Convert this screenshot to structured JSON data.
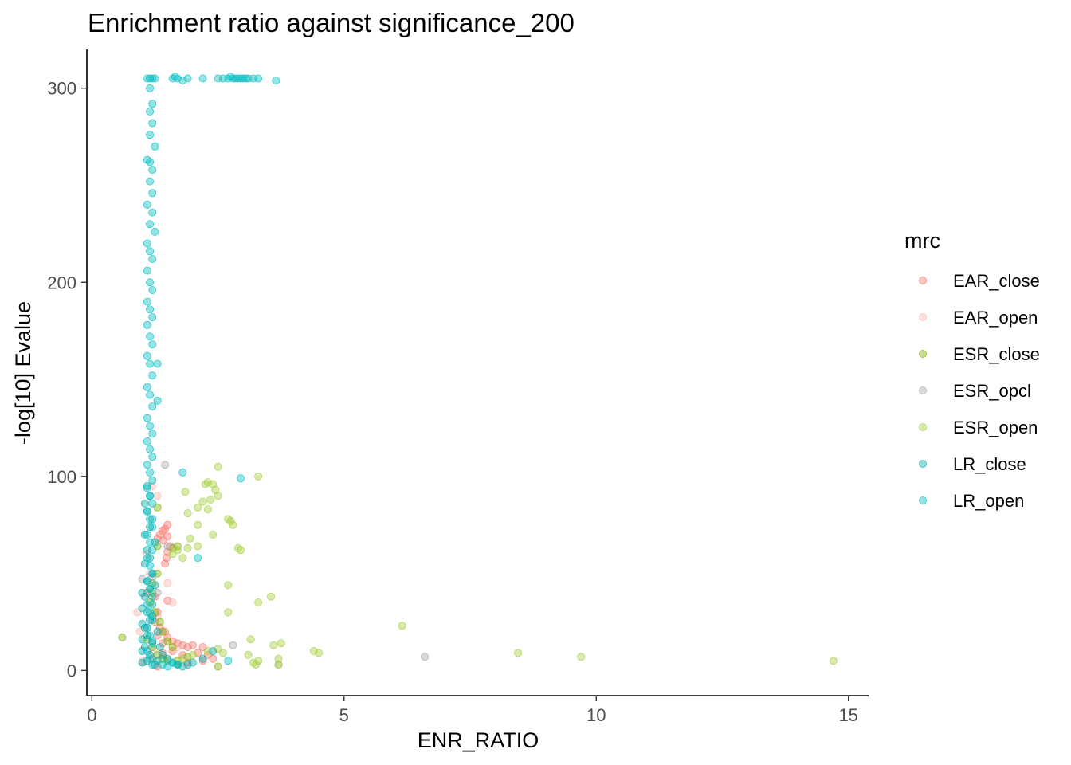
{
  "chart_data": {
    "type": "scatter",
    "title": "Enrichment ratio against significance_200",
    "xlabel": "ENR_RATIO",
    "ylabel": "-log[10] Evalue",
    "xlim": [
      -0.1,
      15.4
    ],
    "ylim": [
      -13,
      320
    ],
    "xticks": [
      0,
      5,
      10,
      15
    ],
    "yticks": [
      0,
      100,
      200,
      300
    ],
    "grid": false,
    "legend": {
      "title": "mrc",
      "position": "right"
    },
    "series": [
      {
        "name": "EAR_close",
        "color": "#F8766D",
        "points": [
          [
            1.5,
            75
          ],
          [
            1.45,
            73
          ],
          [
            1.4,
            72
          ],
          [
            1.35,
            70
          ],
          [
            1.5,
            69
          ],
          [
            1.3,
            68
          ],
          [
            1.42,
            67
          ],
          [
            1.55,
            64
          ],
          [
            1.5,
            61
          ],
          [
            1.48,
            58
          ],
          [
            1.45,
            55
          ],
          [
            1.3,
            30
          ],
          [
            1.25,
            25
          ],
          [
            1.35,
            22
          ],
          [
            1.45,
            20
          ],
          [
            1.5,
            17
          ],
          [
            1.6,
            15
          ],
          [
            1.7,
            14
          ],
          [
            1.8,
            13
          ],
          [
            1.9,
            12
          ],
          [
            2.0,
            13
          ],
          [
            2.2,
            12
          ],
          [
            2.3,
            8
          ],
          [
            2.4,
            6
          ],
          [
            2.2,
            5
          ],
          [
            1.9,
            4
          ],
          [
            1.7,
            3
          ],
          [
            1.3,
            2
          ],
          [
            1.2,
            6
          ],
          [
            1.4,
            9
          ],
          [
            1.6,
            10
          ],
          [
            1.8,
            8
          ],
          [
            2.1,
            9
          ],
          [
            1.1,
            40
          ],
          [
            1.25,
            38
          ],
          [
            1.5,
            36
          ],
          [
            1.3,
            18
          ],
          [
            1.4,
            14
          ]
        ]
      },
      {
        "name": "EAR_open",
        "color": "#FBB4AE",
        "points": [
          [
            0.9,
            30
          ],
          [
            0.95,
            20
          ],
          [
            1.2,
            95
          ],
          [
            1.3,
            90
          ],
          [
            1.1,
            60
          ],
          [
            1.15,
            50
          ],
          [
            1.5,
            45
          ],
          [
            1.6,
            35
          ],
          [
            1.3,
            28
          ],
          [
            1.4,
            20
          ],
          [
            1.7,
            12
          ],
          [
            1.8,
            8
          ],
          [
            1.2,
            10
          ],
          [
            1.0,
            5
          ]
        ]
      },
      {
        "name": "ESR_close",
        "color": "#7CAE00",
        "points": [
          [
            0.6,
            17
          ],
          [
            1.3,
            84
          ],
          [
            1.3,
            64
          ],
          [
            1.6,
            63
          ],
          [
            1.7,
            64
          ],
          [
            1.2,
            40
          ],
          [
            1.25,
            30
          ],
          [
            1.35,
            25
          ],
          [
            1.4,
            20
          ],
          [
            1.5,
            15
          ],
          [
            1.6,
            12
          ],
          [
            2.5,
            2
          ],
          [
            3.7,
            3
          ],
          [
            1.1,
            16
          ],
          [
            1.2,
            12
          ],
          [
            1.3,
            8
          ],
          [
            1.4,
            6
          ],
          [
            1.5,
            5
          ],
          [
            1.7,
            5
          ],
          [
            1.9,
            7
          ],
          [
            1.2,
            45
          ],
          [
            1.3,
            50
          ],
          [
            1.15,
            35
          ]
        ]
      },
      {
        "name": "ESR_opcl",
        "color": "#A6A6A6",
        "points": [
          [
            6.6,
            7
          ],
          [
            2.8,
            13
          ],
          [
            1.45,
            106
          ],
          [
            1.5,
            64
          ],
          [
            1.2,
            48
          ],
          [
            1.3,
            40
          ],
          [
            1.1,
            22
          ],
          [
            1.0,
            47
          ]
        ]
      },
      {
        "name": "ESR_open",
        "color": "#A3CF3C",
        "points": [
          [
            14.7,
            5
          ],
          [
            9.7,
            7
          ],
          [
            8.45,
            9
          ],
          [
            6.15,
            23
          ],
          [
            4.5,
            9
          ],
          [
            4.4,
            10
          ],
          [
            3.75,
            14
          ],
          [
            3.6,
            13
          ],
          [
            3.7,
            6
          ],
          [
            3.3,
            5
          ],
          [
            3.25,
            3
          ],
          [
            3.2,
            4
          ],
          [
            3.1,
            8
          ],
          [
            3.15,
            16
          ],
          [
            3.55,
            38
          ],
          [
            3.3,
            35
          ],
          [
            2.7,
            44
          ],
          [
            2.7,
            30
          ],
          [
            2.5,
            105
          ],
          [
            3.3,
            100
          ],
          [
            2.3,
            97
          ],
          [
            2.25,
            96
          ],
          [
            2.4,
            96
          ],
          [
            2.45,
            93
          ],
          [
            2.5,
            90
          ],
          [
            2.35,
            88
          ],
          [
            2.2,
            87
          ],
          [
            2.1,
            84
          ],
          [
            1.9,
            81
          ],
          [
            2.1,
            75
          ],
          [
            2.3,
            83
          ],
          [
            2.4,
            70
          ],
          [
            2.7,
            78
          ],
          [
            2.8,
            75
          ],
          [
            2.75,
            77
          ],
          [
            2.9,
            63
          ],
          [
            2.95,
            62
          ],
          [
            1.85,
            92
          ],
          [
            1.95,
            68
          ],
          [
            1.9,
            63
          ],
          [
            2.1,
            64
          ],
          [
            1.6,
            60
          ],
          [
            1.7,
            62
          ],
          [
            1.8,
            58
          ],
          [
            2.5,
            11
          ],
          [
            2.6,
            9
          ],
          [
            2.3,
            10
          ],
          [
            2.0,
            8
          ],
          [
            1.8,
            6
          ]
        ]
      },
      {
        "name": "LR_close",
        "color": "#00A9A9",
        "points": [
          [
            1.1,
            5
          ],
          [
            1.15,
            8
          ],
          [
            1.05,
            12
          ],
          [
            1.2,
            15
          ],
          [
            1.1,
            18
          ],
          [
            1.05,
            22
          ],
          [
            1.15,
            26
          ],
          [
            1.1,
            30
          ],
          [
            1.2,
            34
          ],
          [
            1.05,
            38
          ],
          [
            1.15,
            42
          ],
          [
            1.1,
            46
          ],
          [
            1.2,
            50
          ],
          [
            1.05,
            55
          ],
          [
            1.15,
            58
          ],
          [
            1.1,
            62
          ],
          [
            1.25,
            66
          ],
          [
            1.05,
            70
          ],
          [
            1.15,
            74
          ],
          [
            1.2,
            78
          ],
          [
            1.1,
            82
          ],
          [
            1.05,
            86
          ],
          [
            1.15,
            90
          ],
          [
            1.1,
            95
          ],
          [
            1.3,
            20
          ],
          [
            1.35,
            12
          ],
          [
            1.4,
            8
          ],
          [
            1.5,
            6
          ],
          [
            1.6,
            4
          ],
          [
            1.7,
            3
          ],
          [
            1.8,
            2
          ],
          [
            1.9,
            3
          ],
          [
            2.0,
            4
          ],
          [
            2.2,
            6
          ],
          [
            2.4,
            10
          ],
          [
            1.25,
            3
          ],
          [
            1.3,
            5
          ],
          [
            1.0,
            4
          ],
          [
            1.0,
            10
          ],
          [
            1.0,
            16
          ],
          [
            1.0,
            24
          ],
          [
            1.0,
            32
          ],
          [
            1.0,
            40
          ],
          [
            1.2,
            28
          ],
          [
            1.25,
            44
          ]
        ]
      },
      {
        "name": "LR_open",
        "color": "#00BFC4",
        "points": [
          [
            1.1,
            305
          ],
          [
            1.15,
            305
          ],
          [
            1.2,
            305
          ],
          [
            1.25,
            305
          ],
          [
            1.6,
            305
          ],
          [
            1.65,
            306
          ],
          [
            1.7,
            305
          ],
          [
            1.8,
            304
          ],
          [
            1.9,
            305
          ],
          [
            2.2,
            305
          ],
          [
            2.5,
            305
          ],
          [
            2.6,
            305
          ],
          [
            2.7,
            305
          ],
          [
            2.75,
            306
          ],
          [
            2.8,
            305
          ],
          [
            2.85,
            305
          ],
          [
            2.9,
            305
          ],
          [
            2.95,
            305
          ],
          [
            3.0,
            305
          ],
          [
            3.05,
            305
          ],
          [
            3.1,
            305
          ],
          [
            3.2,
            305
          ],
          [
            3.3,
            305
          ],
          [
            3.65,
            304
          ],
          [
            1.15,
            300
          ],
          [
            1.2,
            292
          ],
          [
            1.15,
            288
          ],
          [
            1.2,
            282
          ],
          [
            1.15,
            276
          ],
          [
            1.25,
            270
          ],
          [
            1.1,
            263
          ],
          [
            1.15,
            262
          ],
          [
            1.2,
            258
          ],
          [
            1.15,
            252
          ],
          [
            1.2,
            246
          ],
          [
            1.1,
            240
          ],
          [
            1.2,
            236
          ],
          [
            1.15,
            230
          ],
          [
            1.25,
            226
          ],
          [
            1.1,
            220
          ],
          [
            1.15,
            216
          ],
          [
            1.2,
            212
          ],
          [
            1.1,
            206
          ],
          [
            1.15,
            200
          ],
          [
            1.2,
            196
          ],
          [
            1.1,
            190
          ],
          [
            1.15,
            186
          ],
          [
            1.2,
            182
          ],
          [
            1.1,
            178
          ],
          [
            1.15,
            172
          ],
          [
            1.2,
            168
          ],
          [
            1.1,
            162
          ],
          [
            1.15,
            158
          ],
          [
            1.3,
            158
          ],
          [
            1.2,
            152
          ],
          [
            1.1,
            146
          ],
          [
            1.15,
            142
          ],
          [
            1.3,
            139
          ],
          [
            1.2,
            136
          ],
          [
            1.1,
            130
          ],
          [
            1.15,
            126
          ],
          [
            1.2,
            122
          ],
          [
            1.1,
            118
          ],
          [
            1.15,
            114
          ],
          [
            1.2,
            110
          ],
          [
            1.1,
            106
          ],
          [
            1.15,
            102
          ],
          [
            1.2,
            98
          ],
          [
            1.1,
            94
          ],
          [
            1.15,
            90
          ],
          [
            1.2,
            86
          ],
          [
            1.1,
            82
          ],
          [
            1.15,
            78
          ],
          [
            1.2,
            74
          ],
          [
            1.1,
            70
          ],
          [
            1.15,
            66
          ],
          [
            1.2,
            62
          ],
          [
            1.1,
            58
          ],
          [
            1.15,
            54
          ],
          [
            1.2,
            50
          ],
          [
            1.1,
            46
          ],
          [
            1.15,
            42
          ],
          [
            1.2,
            38
          ],
          [
            1.1,
            34
          ],
          [
            1.15,
            30
          ],
          [
            1.2,
            26
          ],
          [
            1.1,
            22
          ],
          [
            1.15,
            18
          ],
          [
            1.2,
            14
          ],
          [
            1.1,
            10
          ],
          [
            1.15,
            6
          ],
          [
            1.2,
            3
          ],
          [
            1.8,
            102
          ],
          [
            2.95,
            99
          ],
          [
            2.1,
            58
          ],
          [
            2.7,
            5
          ],
          [
            1.4,
            3
          ],
          [
            1.5,
            2
          ],
          [
            1.6,
            4
          ],
          [
            1.7,
            3
          ]
        ]
      }
    ]
  }
}
